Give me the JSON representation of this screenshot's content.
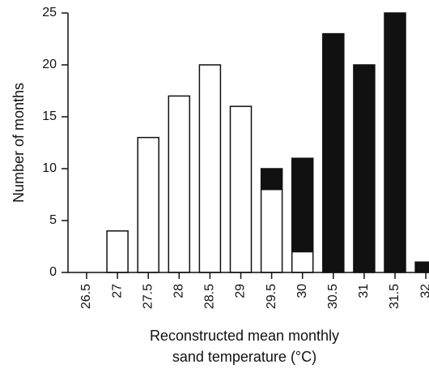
{
  "chart_data": {
    "type": "bar",
    "stacked": true,
    "categories": [
      "26.5",
      "27",
      "27.5",
      "28",
      "28.5",
      "29",
      "29.5",
      "30",
      "30.5",
      "31",
      "31.5",
      "32"
    ],
    "series": [
      {
        "fill": "#ffffff",
        "values": [
          0,
          4,
          13,
          17,
          20,
          16,
          8,
          2,
          0,
          0,
          0,
          0
        ]
      },
      {
        "fill": "#111111",
        "values": [
          0,
          0,
          0,
          0,
          0,
          0,
          2,
          9,
          23,
          20,
          25,
          1
        ]
      }
    ],
    "y_ticks": [
      "0",
      "5",
      "10",
      "15",
      "20",
      "25"
    ],
    "ylim": [
      0,
      25
    ],
    "ylabel": "Number of months",
    "xlabel_line1": "Reconstructed mean monthly",
    "xlabel_line2": "sand temperature (°C)",
    "grid": false
  }
}
